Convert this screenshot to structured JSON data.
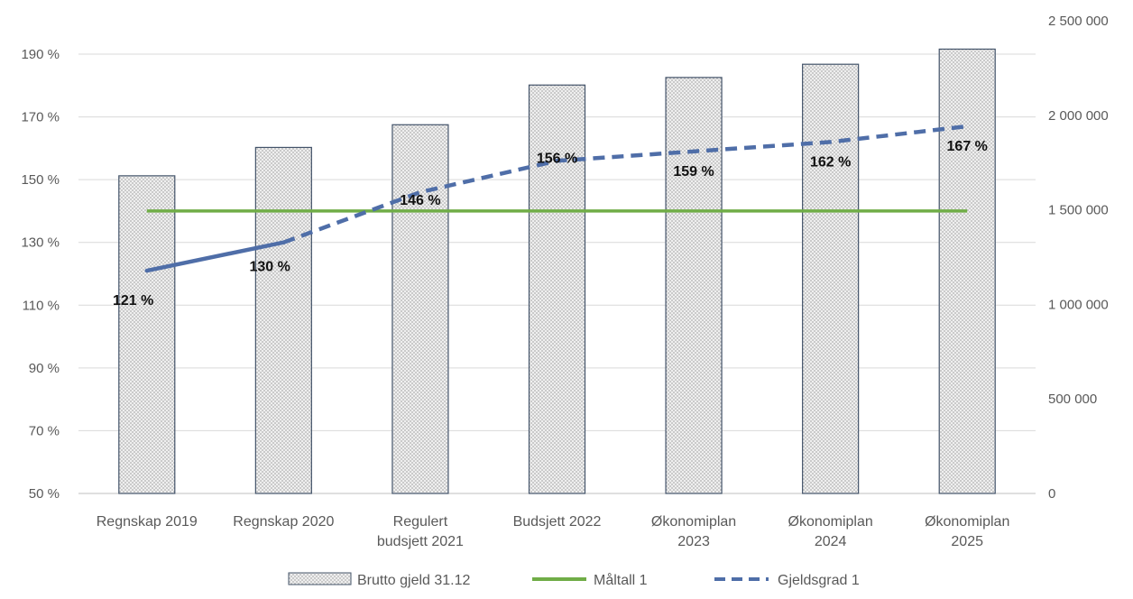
{
  "chart_data": {
    "type": "bar",
    "categories": [
      [
        "Regnskap 2019"
      ],
      [
        "Regnskap 2020"
      ],
      [
        "Regulert",
        "budsjett 2021"
      ],
      [
        "Budsjett 2022"
      ],
      [
        "Økonomiplan",
        "2023"
      ],
      [
        "Økonomiplan",
        "2024"
      ],
      [
        "Økonomiplan",
        "2025"
      ]
    ],
    "series": [
      {
        "name": "Brutto gjeld 31.12",
        "type": "bar",
        "axis": "right",
        "color": "#c9c9c9",
        "border_color": "#44546a",
        "values": [
          1680000,
          1830000,
          1950000,
          2160000,
          2200000,
          2270000,
          2350000
        ]
      },
      {
        "name": "Måltall 1",
        "type": "line",
        "axis": "left",
        "color": "#70ad47",
        "style": "solid",
        "values": [
          140,
          140,
          140,
          140,
          140,
          140,
          140
        ]
      },
      {
        "name": "Gjeldsgrad 1",
        "type": "line",
        "axis": "left",
        "color": "#4f6ea8",
        "style": "solid-then-dashed",
        "solid_until_index": 1,
        "values": [
          121,
          130,
          146,
          156,
          159,
          162,
          167
        ],
        "data_labels": [
          "121 %",
          "130 %",
          "146 %",
          "156 %",
          "159 %",
          "162 %",
          "167 %"
        ]
      }
    ],
    "y_left": {
      "ylim": [
        50,
        190
      ],
      "ticks": [
        50,
        70,
        90,
        110,
        130,
        150,
        170,
        190
      ],
      "tick_labels": [
        "50 %",
        "70 %",
        "90 %",
        "110 %",
        "130 %",
        "150 %",
        "170 %",
        "190 %"
      ]
    },
    "y_right": {
      "ylim": [
        0,
        2500000
      ],
      "ticks": [
        0,
        500000,
        1000000,
        1500000,
        2000000,
        2500000
      ],
      "tick_labels": [
        "0",
        "500 000",
        "1 000 000",
        "1 500 000",
        "2 000 000",
        "2 500 000"
      ]
    },
    "grid": true,
    "legend_position": "bottom",
    "legend": [
      "Brutto gjeld 31.12",
      "Måltall 1",
      "Gjeldsgrad 1"
    ]
  }
}
